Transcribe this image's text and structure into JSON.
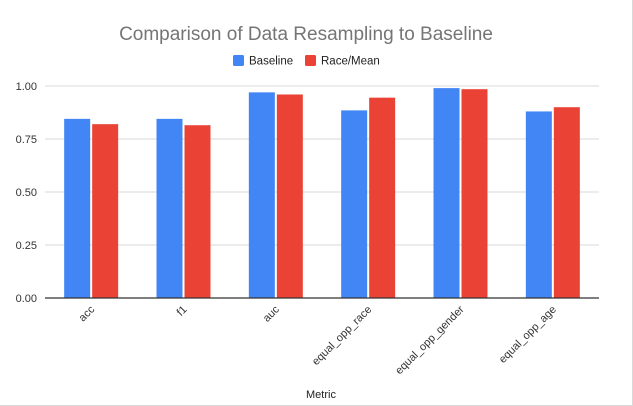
{
  "chart_data": {
    "type": "bar",
    "title": "Comparison of Data Resampling to Baseline",
    "xlabel": "Metric",
    "ylabel": "",
    "categories": [
      "acc",
      "f1",
      "auc",
      "equal_opp_race",
      "equal_opp_gender",
      "equal_opp_age"
    ],
    "series": [
      {
        "name": "Baseline",
        "color": "#4285f4",
        "values": [
          0.845,
          0.845,
          0.97,
          0.885,
          0.99,
          0.88
        ]
      },
      {
        "name": "Race/Mean",
        "color": "#ea4335",
        "values": [
          0.82,
          0.815,
          0.96,
          0.945,
          0.985,
          0.9
        ]
      }
    ],
    "ylim": [
      0,
      1.0
    ],
    "yticks": [
      "0.00",
      "0.25",
      "0.50",
      "0.75",
      "1.00"
    ],
    "grid": true,
    "legend_position": "top-center"
  }
}
